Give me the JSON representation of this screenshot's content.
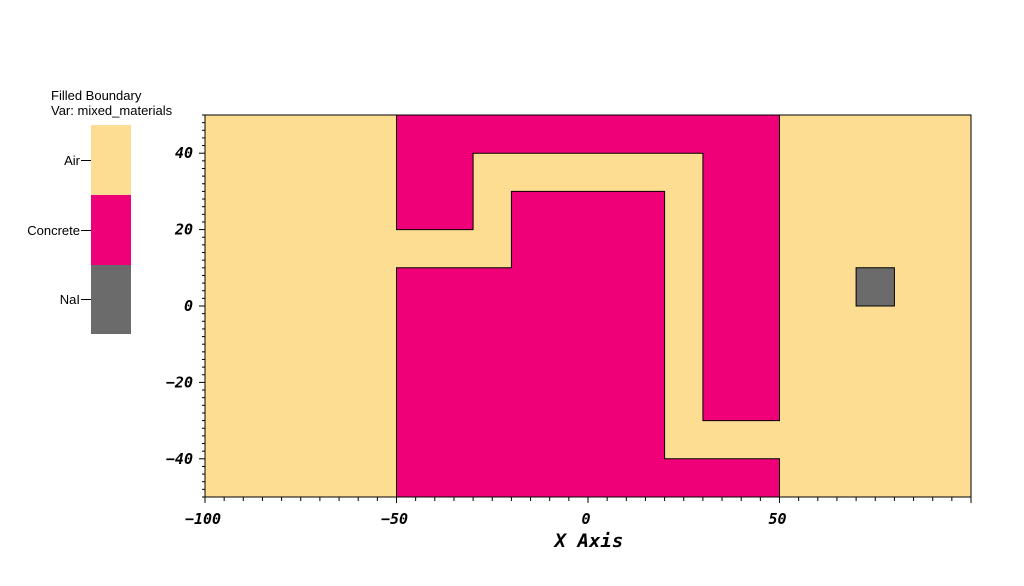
{
  "legend": {
    "title_line1": "Filled Boundary",
    "title_line2": "Var: mixed_materials",
    "materials": [
      {
        "name": "Air",
        "color": "#FDDD92"
      },
      {
        "name": "Concrete",
        "color": "#EF0079"
      },
      {
        "name": "NaI",
        "color": "#6B6B6B"
      }
    ]
  },
  "chart_data": {
    "type": "filled-boundary",
    "xlabel": "X Axis",
    "ylabel": "",
    "xlim": [
      -100,
      100
    ],
    "ylim": [
      -50,
      50
    ],
    "x_ticks": [
      -100,
      -50,
      0,
      50
    ],
    "y_ticks": [
      -40,
      -20,
      0,
      20,
      40
    ],
    "regions": [
      {
        "material": "Air",
        "color": "#FDDD92",
        "polygon": [
          [
            -100,
            -50
          ],
          [
            100,
            -50
          ],
          [
            100,
            50
          ],
          [
            -100,
            50
          ]
        ]
      },
      {
        "material": "Concrete",
        "color": "#EF0079",
        "polygon": [
          [
            -50,
            50
          ],
          [
            50,
            50
          ],
          [
            50,
            -30
          ],
          [
            30,
            -30
          ],
          [
            30,
            40
          ],
          [
            -30,
            40
          ],
          [
            -30,
            20
          ],
          [
            -50,
            20
          ]
        ]
      },
      {
        "material": "Concrete",
        "color": "#EF0079",
        "polygon": [
          [
            -50,
            -50
          ],
          [
            50,
            -50
          ],
          [
            50,
            -40
          ],
          [
            20,
            -40
          ],
          [
            20,
            30
          ],
          [
            -20,
            30
          ],
          [
            -20,
            10
          ],
          [
            -50,
            10
          ]
        ]
      },
      {
        "material": "NaI",
        "color": "#6B6B6B",
        "polygon": [
          [
            70,
            0
          ],
          [
            80,
            0
          ],
          [
            80,
            10
          ],
          [
            70,
            10
          ]
        ]
      }
    ]
  }
}
